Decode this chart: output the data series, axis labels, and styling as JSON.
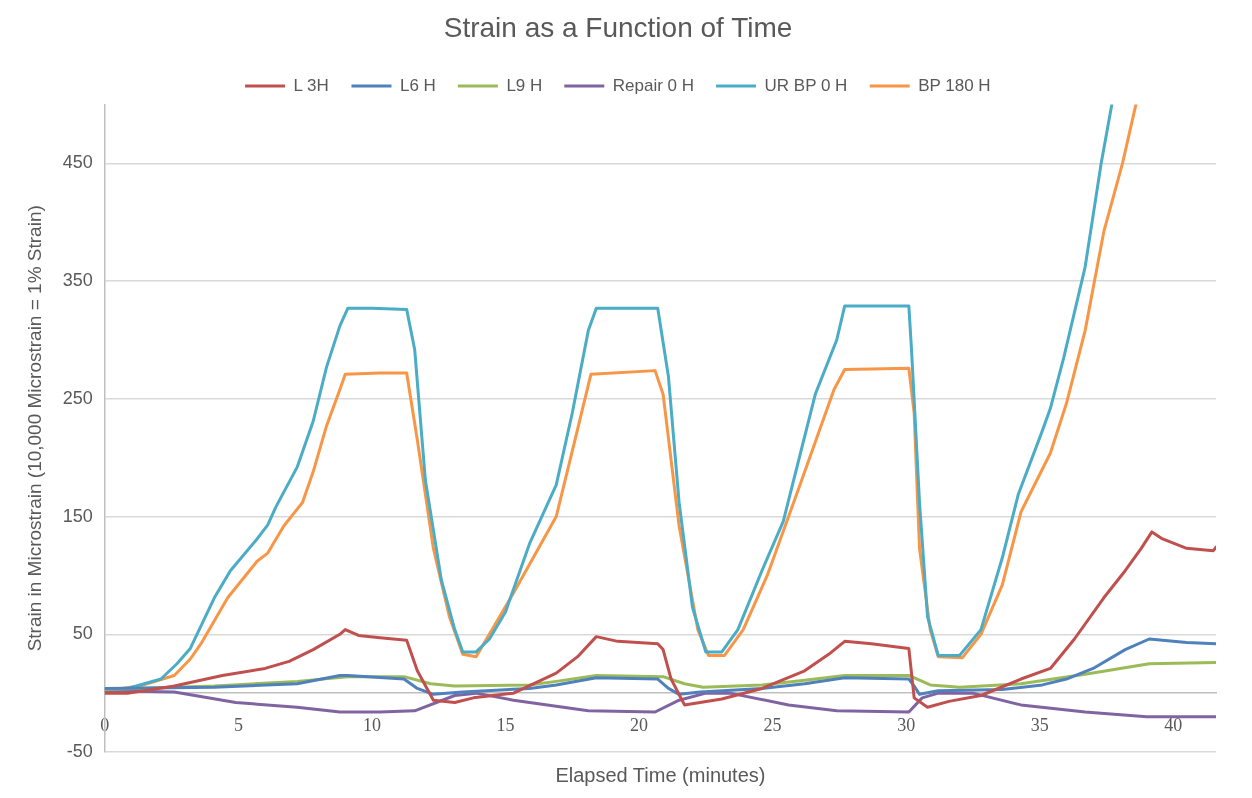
{
  "chart_data": {
    "type": "line",
    "title": "Strain as a Function of Time",
    "xlabel": "Elapsed Time (minutes)",
    "ylabel": "Strain in Microstrain (10,000 Microstrain = 1% Strain)",
    "xlim": [
      0,
      41.6
    ],
    "xticks": [
      0,
      5,
      10,
      15,
      20,
      25,
      30,
      35,
      40
    ],
    "ylim": [
      -50,
      500
    ],
    "yticks": [
      -50,
      50,
      150,
      250,
      350,
      450
    ],
    "grid": "y",
    "legend": "top",
    "marker": "none",
    "line_style": "solid",
    "series": [
      {
        "name": "L 3H",
        "color": "#c0504d",
        "x": [
          0,
          0.85,
          2.6,
          4.4,
          6.0,
          6.9,
          7.8,
          8.8,
          9.0,
          9.5,
          10.3,
          11.3,
          11.7,
          12.3,
          13.1,
          13.8,
          15.3,
          16.9,
          17.7,
          18.4,
          19.2,
          20.7,
          20.9,
          21.2,
          21.7,
          23.1,
          24.6,
          26.2,
          27.1,
          27.7,
          28.7,
          30.1,
          30.3,
          30.8,
          31.6,
          32.8,
          34.3,
          35.4,
          36.3,
          37.4,
          38.2,
          38.8,
          39.2,
          39.6,
          40.5,
          41.5,
          41.6
        ],
        "values": [
          0,
          0,
          6,
          15,
          21,
          27,
          37,
          50,
          54,
          49,
          47,
          45,
          19,
          -6,
          -8,
          -4,
          0,
          17,
          31,
          48,
          44,
          42,
          37,
          12,
          -10,
          -5,
          4,
          19,
          33,
          44,
          42,
          38,
          -4,
          -12,
          -7,
          -2,
          12,
          21,
          46,
          81,
          104,
          123,
          137,
          131,
          123,
          121,
          124
        ]
      },
      {
        "name": "L6 H",
        "color": "#4f81bd",
        "x": [
          0,
          4.1,
          7.2,
          8.8,
          9.1,
          11.2,
          11.7,
          12.3,
          13.4,
          15.9,
          16.9,
          18.4,
          20.7,
          21.1,
          21.5,
          22.3,
          24.6,
          26.2,
          27.7,
          30.1,
          30.3,
          30.5,
          31.2,
          33.6,
          35.1,
          36.0,
          37.0,
          38.2,
          39.1,
          40.5,
          41.6
        ],
        "values": [
          4,
          5,
          8,
          15,
          15,
          12,
          4,
          -1,
          1,
          4,
          7,
          13,
          12,
          4,
          -1,
          1,
          4,
          8,
          13,
          12,
          6,
          -1,
          2,
          3,
          7,
          12,
          21,
          37,
          46,
          43,
          42
        ]
      },
      {
        "name": "L9 H",
        "color": "#9bbb59",
        "x": [
          0,
          4.1,
          7.2,
          9.1,
          11.2,
          12.2,
          13.1,
          15.9,
          16.9,
          18.4,
          20.9,
          21.7,
          22.4,
          24.6,
          26.2,
          27.7,
          30.1,
          30.9,
          32.0,
          34.3,
          36.7,
          39.1,
          41.6
        ],
        "values": [
          3,
          6,
          10,
          14,
          14,
          8,
          6,
          7,
          10,
          15,
          14,
          8,
          5,
          7,
          11,
          15,
          15,
          7,
          5,
          8,
          16,
          25,
          26
        ]
      },
      {
        "name": "Repair 0 H",
        "color": "#8064a2",
        "x": [
          0,
          2.6,
          4.9,
          7.2,
          8.8,
          10.3,
          11.6,
          13.1,
          13.9,
          15.3,
          18.1,
          20.6,
          21.5,
          22.5,
          23.4,
          25.6,
          27.4,
          30.1,
          30.6,
          31.2,
          32.5,
          34.3,
          36.7,
          39.0,
          41.6
        ],
        "values": [
          2,
          1,
          -8,
          -12,
          -16,
          -16,
          -15,
          -2,
          0,
          -6,
          -15,
          -16,
          -6,
          0,
          0,
          -10,
          -15,
          -16,
          -4,
          0,
          0,
          -10,
          -16,
          -20,
          -20
        ]
      },
      {
        "name": "UR BP 0 H",
        "color": "#4bacc6",
        "x": [
          0,
          0.85,
          2.1,
          2.7,
          3.2,
          4.1,
          4.7,
          5.7,
          6.1,
          6.4,
          7.2,
          7.8,
          8.3,
          8.8,
          9.1,
          10.0,
          11.3,
          11.6,
          12.0,
          12.6,
          13.1,
          13.4,
          13.9,
          14.4,
          15.0,
          15.9,
          16.9,
          17.5,
          18.1,
          18.4,
          20.7,
          21.1,
          21.5,
          22.0,
          22.5,
          23.1,
          23.7,
          24.6,
          25.4,
          26.6,
          27.4,
          27.7,
          30.1,
          30.2,
          30.5,
          30.8,
          31.2,
          32.0,
          32.8,
          33.6,
          34.2,
          35.1,
          35.4,
          35.9,
          36.7,
          37.3,
          37.7
        ],
        "values": [
          4,
          4,
          12,
          25,
          38,
          81,
          104,
          131,
          143,
          158,
          192,
          231,
          277,
          312,
          327,
          327,
          326,
          292,
          181,
          96,
          54,
          35,
          35,
          46,
          69,
          127,
          177,
          238,
          308,
          327,
          327,
          269,
          162,
          73,
          35,
          35,
          54,
          104,
          146,
          254,
          300,
          329,
          329,
          292,
          162,
          65,
          32,
          32,
          54,
          115,
          169,
          223,
          242,
          285,
          362,
          450,
          500
        ]
      },
      {
        "name": "BP 180 H",
        "color": "#f79646",
        "x": [
          0,
          1.3,
          2.6,
          3.2,
          3.6,
          4.6,
          5.7,
          6.1,
          6.7,
          7.4,
          7.8,
          8.3,
          8.8,
          9.0,
          10.3,
          11.3,
          11.7,
          12.3,
          12.9,
          13.4,
          13.9,
          15.3,
          16.9,
          17.6,
          18.2,
          20.6,
          20.9,
          21.5,
          22.2,
          22.6,
          23.2,
          23.9,
          24.8,
          25.9,
          27.3,
          27.7,
          30.1,
          30.3,
          30.5,
          30.9,
          31.2,
          32.1,
          32.8,
          33.6,
          34.3,
          35.4,
          36.0,
          36.7,
          37.4,
          38.1,
          38.6
        ],
        "values": [
          2,
          6,
          15,
          29,
          42,
          81,
          112,
          119,
          142,
          162,
          188,
          227,
          258,
          271,
          272,
          272,
          215,
          123,
          65,
          33,
          31,
          85,
          150,
          215,
          271,
          274,
          254,
          142,
          54,
          32,
          32,
          54,
          100,
          169,
          258,
          275,
          276,
          238,
          123,
          54,
          31,
          30,
          50,
          92,
          154,
          204,
          246,
          308,
          392,
          450,
          500
        ]
      }
    ]
  }
}
